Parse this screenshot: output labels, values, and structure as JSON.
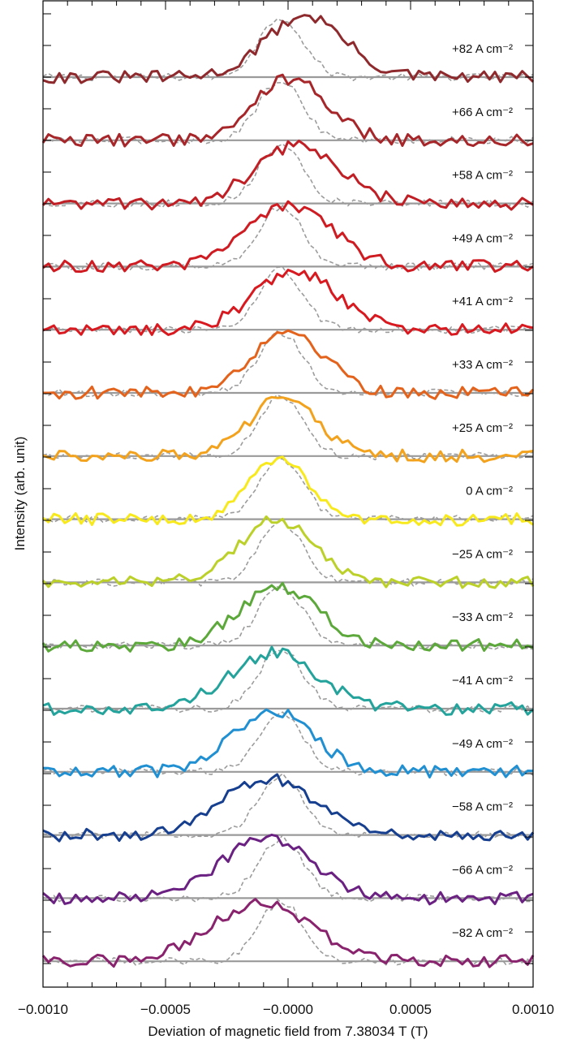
{
  "chart_data": {
    "type": "line",
    "title": "",
    "xlabel": "Deviation of magnetic field from 7.38034 T (T)",
    "ylabel": "Intensity (arb. unit)",
    "xlim": [
      -0.001,
      0.001
    ],
    "xticks": [
      -0.001,
      -0.0005,
      0.0,
      0.0005,
      0.001
    ],
    "xtick_labels": [
      "−0.0010",
      "−0.0005",
      "−0.0000",
      "0.0005",
      "0.0010"
    ],
    "layout": "stacked, vertically offset traces with horizontal baselines; grey dashed reference curve behind each trace",
    "grid": false,
    "legend": "none; each trace labelled at right above its baseline",
    "reference_series": {
      "style": "grey dashed",
      "center": -3e-05,
      "width": 9e-05
    },
    "series": [
      {
        "name": "+82 A cm⁻²",
        "color": "#8e2a2d",
        "peak_center": 7e-05,
        "peak_width": 0.00016,
        "peak_height": 1.0
      },
      {
        "name": "+66 A cm⁻²",
        "color": "#a6262a",
        "peak_center": 1e-05,
        "peak_width": 0.00015,
        "peak_height": 1.0
      },
      {
        "name": "+58 A cm⁻²",
        "color": "#c01f25",
        "peak_center": 4e-05,
        "peak_width": 0.00017,
        "peak_height": 0.95
      },
      {
        "name": "+49 A cm⁻²",
        "color": "#cf1b22",
        "peak_center": 1e-05,
        "peak_width": 0.00017,
        "peak_height": 1.0
      },
      {
        "name": "+41 A cm⁻²",
        "color": "#d81a20",
        "peak_center": 3e-05,
        "peak_width": 0.00017,
        "peak_height": 0.95
      },
      {
        "name": "+33 A cm⁻²",
        "color": "#e4631c",
        "peak_center": 0.0,
        "peak_width": 0.00015,
        "peak_height": 1.0
      },
      {
        "name": "+25 A cm⁻²",
        "color": "#f2a21c",
        "peak_center": -2e-05,
        "peak_width": 0.00014,
        "peak_height": 0.95
      },
      {
        "name": "0 A cm⁻²",
        "color": "#f7e91c",
        "peak_center": -4e-05,
        "peak_width": 0.00012,
        "peak_height": 1.0
      },
      {
        "name": "−25 A cm⁻²",
        "color": "#bcd02a",
        "peak_center": -5e-05,
        "peak_width": 0.00015,
        "peak_height": 1.0
      },
      {
        "name": "−33 A cm⁻²",
        "color": "#5ca83a",
        "peak_center": -4e-05,
        "peak_width": 0.00016,
        "peak_height": 0.95
      },
      {
        "name": "−41 A cm⁻²",
        "color": "#23a39b",
        "peak_center": -6e-05,
        "peak_width": 0.00018,
        "peak_height": 0.9
      },
      {
        "name": "−49 A cm⁻²",
        "color": "#2190d2",
        "peak_center": -6e-05,
        "peak_width": 0.00016,
        "peak_height": 1.0
      },
      {
        "name": "−58 A cm⁻²",
        "color": "#173f8f",
        "peak_center": -8e-05,
        "peak_width": 0.00019,
        "peak_height": 0.9
      },
      {
        "name": "−66 A cm⁻²",
        "color": "#6a2182",
        "peak_center": -9e-05,
        "peak_width": 0.00019,
        "peak_height": 0.95
      },
      {
        "name": "−82 A cm⁻²",
        "color": "#89236e",
        "peak_center": -0.00011,
        "peak_width": 0.0002,
        "peak_height": 0.95
      }
    ]
  }
}
